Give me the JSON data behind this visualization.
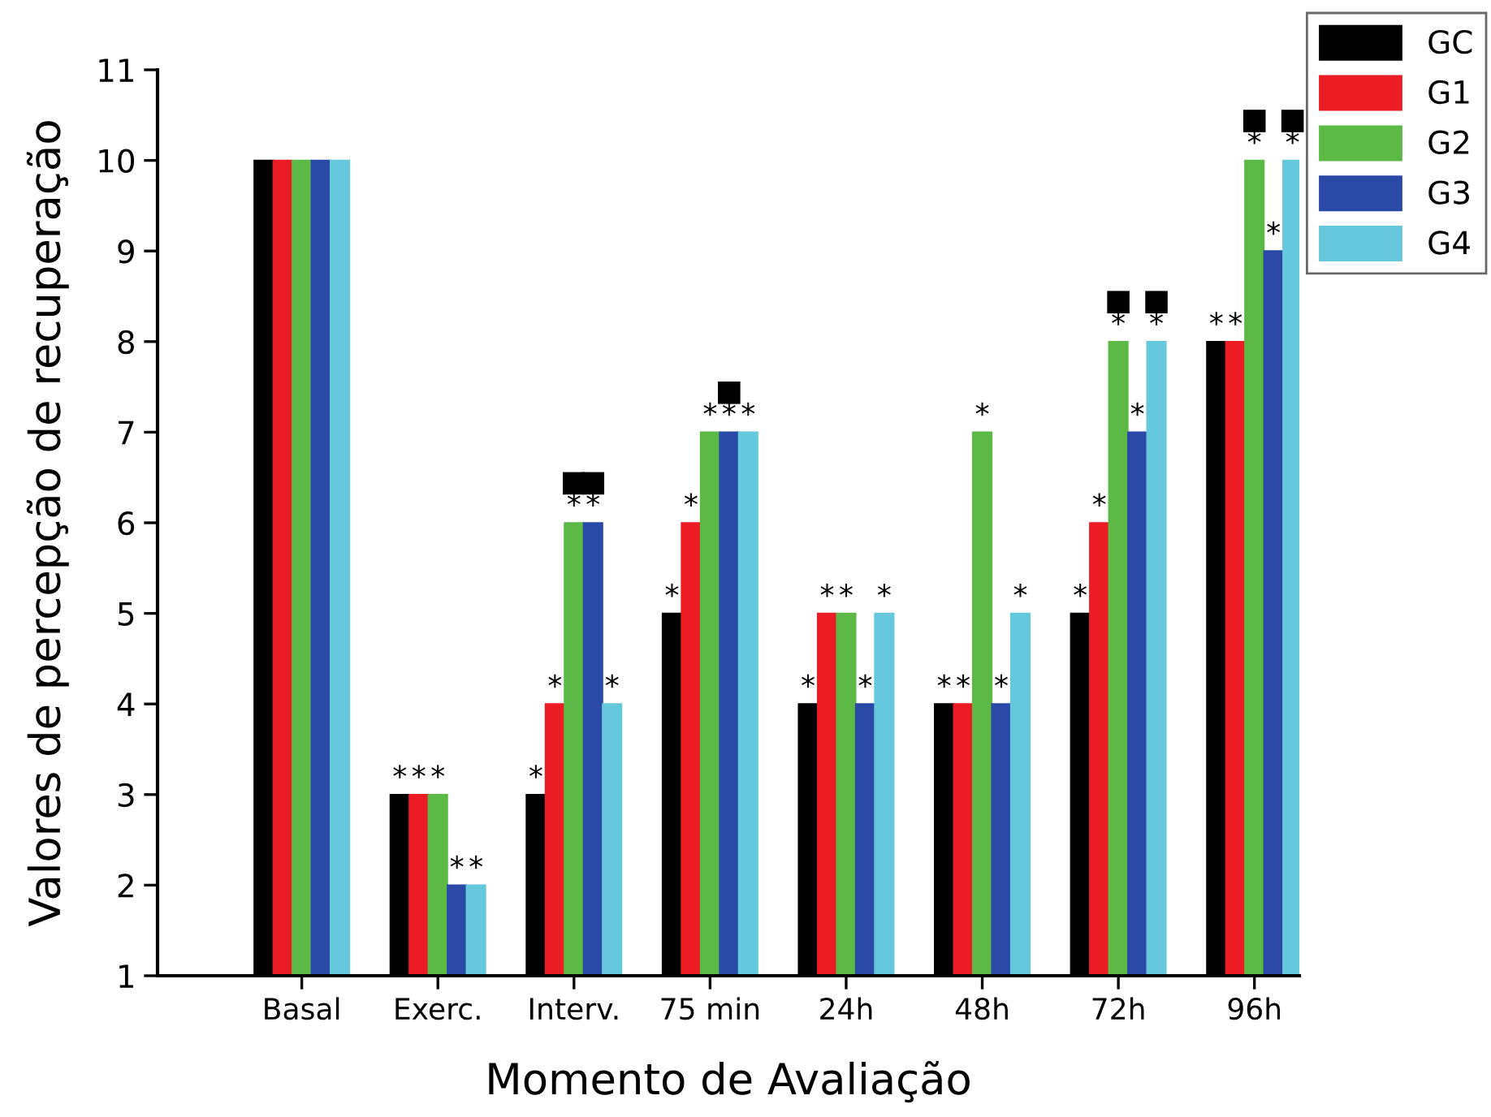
{
  "chart_data": {
    "type": "bar",
    "xlabel": "Momento de Avaliação",
    "ylabel": "Valores de percepção de recuperação",
    "categories": [
      "Basal",
      "Exerc.",
      "Interv.",
      "75 min",
      "24h",
      "48h",
      "72h",
      "96h"
    ],
    "ylim": [
      1,
      11
    ],
    "yticks": [
      1,
      2,
      3,
      4,
      5,
      6,
      7,
      8,
      9,
      10,
      11
    ],
    "grid": false,
    "legend": "top right",
    "series": [
      {
        "name": "GC",
        "color": "#000000",
        "values": [
          10,
          3,
          3,
          5,
          4,
          4,
          5,
          8
        ],
        "value_labels": [
          null,
          "*",
          "*",
          "*",
          "*",
          "*",
          "*",
          "*"
        ]
      },
      {
        "name": "G1",
        "color": "#ec1c24",
        "values": [
          10,
          3,
          4,
          6,
          5,
          4,
          6,
          8
        ],
        "value_labels": [
          null,
          "*",
          "*",
          "*",
          "*",
          "*",
          "*",
          "*"
        ]
      },
      {
        "name": "G2",
        "color": "#5cb946",
        "values": [
          10,
          3,
          6,
          7,
          5,
          7,
          8,
          10
        ],
        "value_labels": [
          null,
          "*",
          "■\n*",
          "*",
          "*",
          "*",
          "■\n*",
          "■\n*"
        ]
      },
      {
        "name": "G3",
        "color": "#2b4aa8",
        "values": [
          10,
          2,
          6,
          7,
          4,
          4,
          7,
          9
        ],
        "value_labels": [
          null,
          "*",
          "■\n*",
          "■\n*",
          "*",
          "*",
          "*",
          "*"
        ]
      },
      {
        "name": "G4",
        "color": "#66c8dc",
        "values": [
          10,
          2,
          4,
          7,
          5,
          5,
          8,
          10
        ],
        "value_labels": [
          null,
          "*",
          "*",
          "*",
          "*",
          "*",
          "■\n*",
          "■\n*"
        ]
      }
    ]
  }
}
